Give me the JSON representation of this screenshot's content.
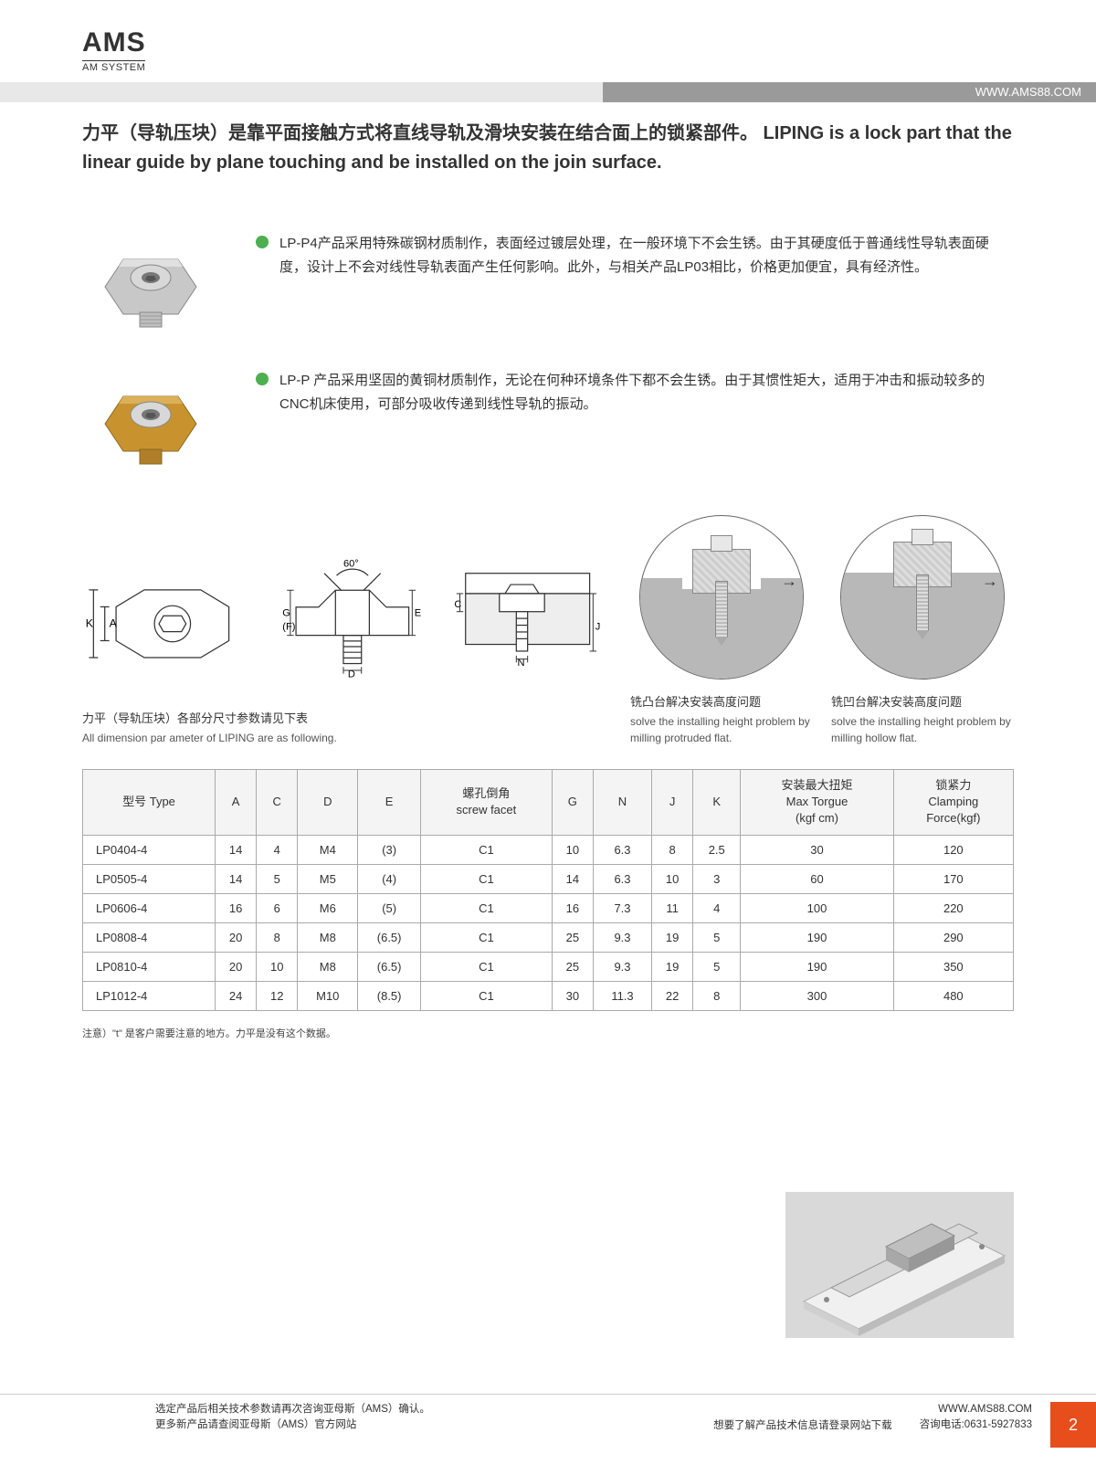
{
  "header": {
    "logo_main": "AMS",
    "logo_sub": "AM SYSTEM",
    "url": "WWW.AMS88.COM"
  },
  "title": "力平（导轨压块）是靠平面接触方式将直线导轨及滑块安装在结合面上的锁紧部件。 LIPING is a lock part that the linear guide by plane touching and be installed on the join surface.",
  "products": [
    {
      "desc": "LP-P4产品采用特殊碳钢材质制作，表面经过镀层处理，在一般环境下不会生锈。由于其硬度低于普通线性导轨表面硬度，设计上不会对线性导轨表面产生任何影响。此外，与相关产品LP03相比，价格更加便宜，具有经济性。",
      "color_body": "#c9c9c9",
      "color_top": "#d8d8d8"
    },
    {
      "desc": "LP-P 产品采用坚固的黄铜材质制作，无论在何种环境条件下都不会生锈。由于其惯性矩大，适用于冲击和振动较多的CNC机床使用，可部分吸收传递到线性导轨的振动。",
      "color_body": "#c8932f",
      "color_top": "#dab05a"
    }
  ],
  "dim_caption": {
    "cn": "力平（导轨压块）各部分尺寸参数请见下表",
    "en": "All dimension par ameter of LIPING are as following."
  },
  "mill_protrude": {
    "cn": "铣凸台解决安装高度问题",
    "en": "solve the installing height problem by milling protruded flat."
  },
  "mill_hollow": {
    "cn": "铣凹台解决安装高度问题",
    "en": "solve the installing height problem by milling hollow flat."
  },
  "table": {
    "headers": {
      "type": "型号 Type",
      "a": "A",
      "c": "C",
      "d": "D",
      "e": "E",
      "facet": "螺孔倒角\nscrew facet",
      "g": "G",
      "n": "N",
      "j": "J",
      "k": "K",
      "torque": "安装最大扭矩\nMax Torgue\n(kgf cm)",
      "clamp": "锁紧力\nClamping\nForce(kgf)"
    },
    "rows": [
      [
        "LP0404-4",
        "14",
        "4",
        "M4",
        "(3)",
        "C1",
        "10",
        "6.3",
        "8",
        "2.5",
        "30",
        "120"
      ],
      [
        "LP0505-4",
        "14",
        "5",
        "M5",
        "(4)",
        "C1",
        "14",
        "6.3",
        "10",
        "3",
        "60",
        "170"
      ],
      [
        "LP0606-4",
        "16",
        "6",
        "M6",
        "(5)",
        "C1",
        "16",
        "7.3",
        "11",
        "4",
        "100",
        "220"
      ],
      [
        "LP0808-4",
        "20",
        "8",
        "M8",
        "(6.5)",
        "C1",
        "25",
        "9.3",
        "19",
        "5",
        "190",
        "290"
      ],
      [
        "LP0810-4",
        "20",
        "10",
        "M8",
        "(6.5)",
        "C1",
        "25",
        "9.3",
        "19",
        "5",
        "190",
        "350"
      ],
      [
        "LP1012-4",
        "24",
        "12",
        "M10",
        "(8.5)",
        "C1",
        "30",
        "11.3",
        "22",
        "8",
        "300",
        "480"
      ]
    ]
  },
  "table_note": "注意）\"t\" 是客户需要注意的地方。力平是没有这个数据。",
  "footer": {
    "left_l1": "选定产品后相关技术参数请再次咨询亚母斯（AMS）确认。",
    "left_l2": "更多新产品请查阅亚母斯（AMS）官方网站",
    "mid": "想要了解产品技术信息请登录网站下载",
    "right_l1": "WWW.AMS88.COM",
    "right_l2": "咨询电话:0631-5927833",
    "page": "2"
  },
  "colors": {
    "bullet": "#4caf50",
    "url_bar": "#9a9a9a",
    "page_num_bg": "#e84d1c",
    "table_border": "#aaaaaa",
    "table_header_bg": "#f4f4f4"
  },
  "tech_labels": {
    "angle": "60°",
    "K": "K",
    "A": "A",
    "G": "G",
    "F": "(F)",
    "E": "E",
    "D": "D",
    "C": "C",
    "J": "J",
    "N": "N"
  }
}
